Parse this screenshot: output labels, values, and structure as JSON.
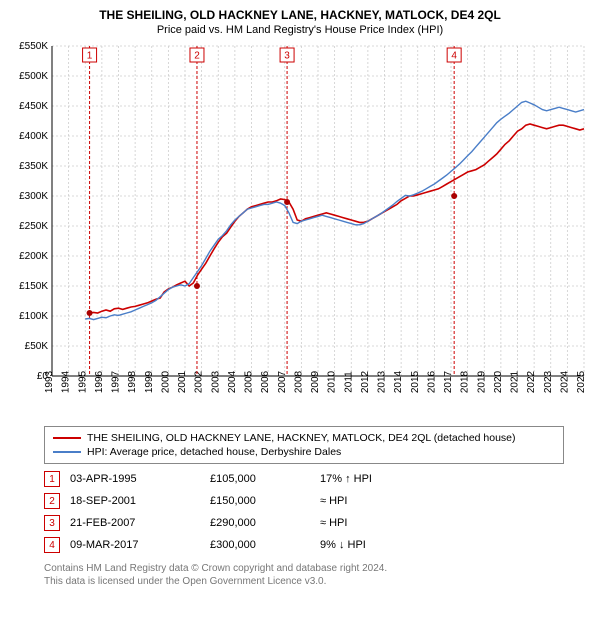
{
  "title_line1": "THE SHEILING, OLD HACKNEY LANE, HACKNEY, MATLOCK, DE4 2QL",
  "title_line2": "Price paid vs. HM Land Registry's House Price Index (HPI)",
  "chart": {
    "type": "line",
    "background_color": "#ffffff",
    "grid_color": "#cccccc",
    "grid_dash": "2,2",
    "axis_color": "#000000",
    "axis_fontsize": 10,
    "x_years": [
      1993,
      1994,
      1995,
      1996,
      1997,
      1998,
      1999,
      2000,
      2001,
      2002,
      2003,
      2004,
      2005,
      2006,
      2007,
      2008,
      2009,
      2010,
      2011,
      2012,
      2013,
      2014,
      2015,
      2016,
      2017,
      2018,
      2019,
      2020,
      2021,
      2022,
      2023,
      2024,
      2025
    ],
    "xlim": [
      1993,
      2025
    ],
    "ylim": [
      0,
      550000
    ],
    "ytick_step": 50000,
    "ytick_prefix": "£",
    "ytick_suffix": "K",
    "ytick_divisor": 1000,
    "series": [
      {
        "id": "property",
        "label": "THE SHEILING, OLD HACKNEY LANE, HACKNEY, MATLOCK, DE4 2QL (detached house)",
        "color": "#cc0000",
        "line_width": 1.6,
        "start_year": 1995.25,
        "step_years": 0.25,
        "values": [
          105000,
          106000,
          105000,
          108000,
          110000,
          108000,
          112000,
          113000,
          111000,
          113000,
          115000,
          116000,
          118000,
          120000,
          122000,
          125000,
          128000,
          130000,
          140000,
          145000,
          148000,
          152000,
          155000,
          158000,
          150000,
          155000,
          168000,
          178000,
          188000,
          200000,
          212000,
          223000,
          232000,
          238000,
          248000,
          258000,
          266000,
          272000,
          278000,
          282000,
          284000,
          286000,
          288000,
          290000,
          290000,
          292000,
          295000,
          294000,
          290000,
          278000,
          260000,
          258000,
          262000,
          264000,
          266000,
          268000,
          270000,
          272000,
          270000,
          268000,
          266000,
          264000,
          262000,
          260000,
          258000,
          256000,
          256000,
          258000,
          262000,
          266000,
          270000,
          274000,
          278000,
          282000,
          286000,
          292000,
          296000,
          300000,
          300000,
          302000,
          304000,
          306000,
          308000,
          310000,
          312000,
          316000,
          320000,
          324000,
          328000,
          332000,
          336000,
          340000,
          342000,
          344000,
          348000,
          352000,
          358000,
          364000,
          370000,
          378000,
          386000,
          392000,
          400000,
          408000,
          412000,
          418000,
          420000,
          418000,
          416000,
          414000,
          412000,
          414000,
          416000,
          418000,
          418000,
          416000,
          414000,
          412000,
          410000,
          412000
        ]
      },
      {
        "id": "hpi",
        "label": "HPI: Average price, detached house, Derbyshire Dales",
        "color": "#4a7ec8",
        "line_width": 1.4,
        "start_year": 1995.0,
        "step_years": 0.25,
        "values": [
          95000,
          96000,
          94000,
          96000,
          98000,
          97000,
          100000,
          102000,
          101000,
          103000,
          105000,
          107000,
          110000,
          113000,
          116000,
          119000,
          122000,
          126000,
          132000,
          138000,
          144000,
          148000,
          150000,
          152000,
          150000,
          154000,
          164000,
          174000,
          184000,
          196000,
          208000,
          218000,
          228000,
          234000,
          242000,
          252000,
          260000,
          266000,
          272000,
          278000,
          280000,
          282000,
          284000,
          286000,
          286000,
          288000,
          290000,
          288000,
          284000,
          272000,
          256000,
          254000,
          258000,
          260000,
          262000,
          264000,
          266000,
          268000,
          266000,
          264000,
          262000,
          260000,
          258000,
          256000,
          254000,
          252000,
          252000,
          254000,
          258000,
          262000,
          266000,
          270000,
          275000,
          280000,
          285000,
          291000,
          296000,
          301000,
          300000,
          302000,
          305000,
          308000,
          312000,
          316000,
          320000,
          325000,
          330000,
          335000,
          341000,
          347000,
          353000,
          360000,
          367000,
          374000,
          382000,
          390000,
          398000,
          406000,
          414000,
          422000,
          428000,
          433000,
          438000,
          444000,
          450000,
          456000,
          458000,
          455000,
          452000,
          448000,
          444000,
          442000,
          444000,
          446000,
          448000,
          446000,
          444000,
          442000,
          440000,
          442000,
          444000
        ]
      }
    ],
    "sale_markers": [
      {
        "n": 1,
        "year": 1995.26,
        "price": 105000
      },
      {
        "n": 2,
        "year": 2001.72,
        "price": 150000
      },
      {
        "n": 3,
        "year": 2007.14,
        "price": 290000
      },
      {
        "n": 4,
        "year": 2017.19,
        "price": 300000
      }
    ],
    "marker_line_color": "#cc0000",
    "marker_line_dash": "3,2",
    "marker_dot_color": "#aa0000",
    "marker_dot_radius": 3
  },
  "legend": {
    "border_color": "#888888",
    "items": [
      {
        "color": "#cc0000",
        "label": "THE SHEILING, OLD HACKNEY LANE, HACKNEY, MATLOCK, DE4 2QL (detached house)"
      },
      {
        "color": "#4a7ec8",
        "label": "HPI: Average price, detached house, Derbyshire Dales"
      }
    ]
  },
  "sales_table": {
    "badge_border_color": "#cc0000",
    "badge_text_color": "#cc0000",
    "rows": [
      {
        "n": "1",
        "date": "03-APR-1995",
        "price": "£105,000",
        "delta": "17% ↑ HPI"
      },
      {
        "n": "2",
        "date": "18-SEP-2001",
        "price": "£150,000",
        "delta": "≈ HPI"
      },
      {
        "n": "3",
        "date": "21-FEB-2007",
        "price": "£290,000",
        "delta": "≈ HPI"
      },
      {
        "n": "4",
        "date": "09-MAR-2017",
        "price": "£300,000",
        "delta": "9% ↓ HPI"
      }
    ]
  },
  "footer": {
    "line1": "Contains HM Land Registry data © Crown copyright and database right 2024.",
    "line2": "This data is licensed under the Open Government Licence v3.0.",
    "color": "#777777"
  }
}
